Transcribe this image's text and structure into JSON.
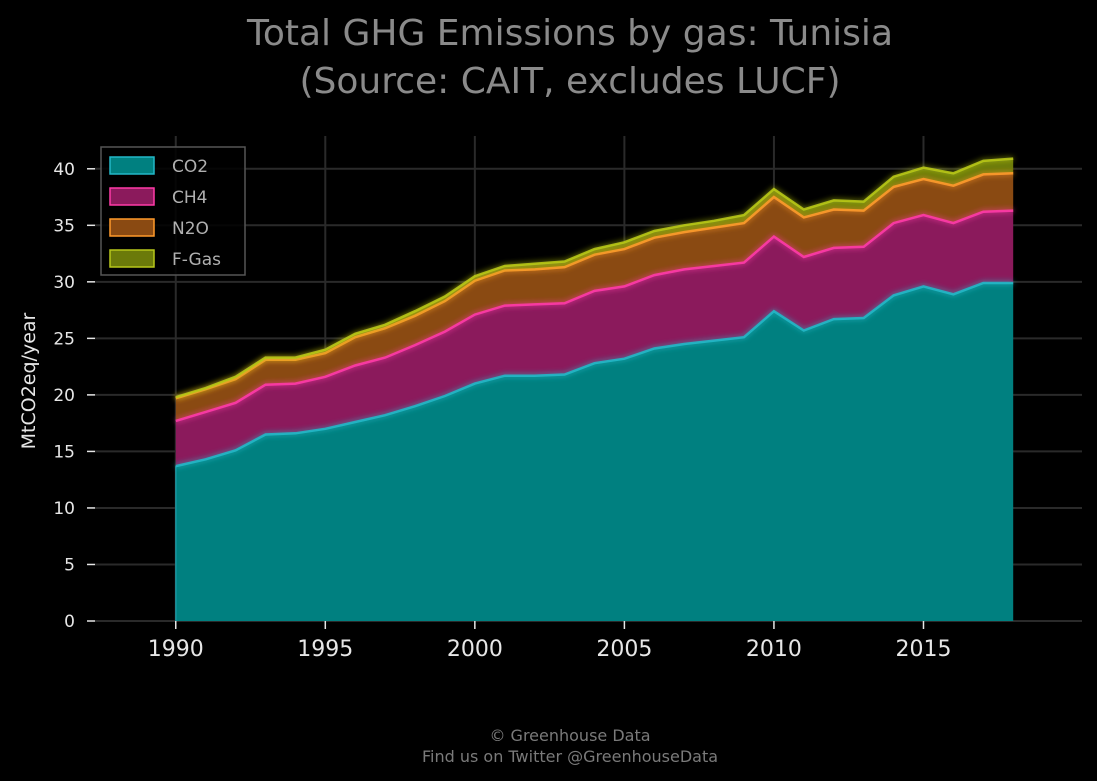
{
  "title_line1": "Total GHG Emissions by gas: Tunisia",
  "title_line2": "(Source: CAIT, excludes LUCF)",
  "footer_line1": "© Greenhouse Data",
  "footer_line2": "Find us on Twitter @GreenhouseData",
  "chart_data": {
    "type": "area",
    "stacked": true,
    "ylabel": "MtCO2eq/year",
    "xlabel": "",
    "xlim": [
      1987.3,
      2020.3
    ],
    "ylim": [
      0,
      42.9
    ],
    "grid": true,
    "legend_position": "top-left",
    "x_ticks": [
      1990,
      1995,
      2000,
      2005,
      2010,
      2015
    ],
    "y_ticks": [
      0,
      5,
      10,
      15,
      20,
      25,
      30,
      35,
      40
    ],
    "x": [
      1990,
      1991,
      1992,
      1993,
      1994,
      1995,
      1996,
      1997,
      1998,
      1999,
      2000,
      2001,
      2002,
      2003,
      2004,
      2005,
      2006,
      2007,
      2008,
      2009,
      2010,
      2011,
      2012,
      2013,
      2014,
      2015,
      2016,
      2017,
      2018
    ],
    "series": [
      {
        "name": "CO2",
        "color": "#008080",
        "values": [
          13.7,
          14.3,
          15.1,
          16.5,
          16.6,
          17.0,
          17.6,
          18.2,
          19.0,
          19.9,
          21.0,
          21.7,
          21.7,
          21.8,
          22.8,
          23.2,
          24.1,
          24.5,
          24.8,
          25.1,
          27.4,
          25.7,
          26.7,
          26.8,
          28.8,
          29.6,
          28.9,
          29.9,
          29.9
        ]
      },
      {
        "name": "CH4",
        "color": "#8b1a5c",
        "values": [
          4.0,
          4.2,
          4.2,
          4.4,
          4.4,
          4.6,
          5.0,
          5.1,
          5.4,
          5.7,
          6.1,
          6.2,
          6.3,
          6.3,
          6.4,
          6.4,
          6.5,
          6.6,
          6.6,
          6.6,
          6.6,
          6.5,
          6.3,
          6.3,
          6.4,
          6.3,
          6.3,
          6.3,
          6.4
        ]
      },
      {
        "name": "N2O",
        "color": "#8a4a12",
        "values": [
          2.0,
          2.0,
          2.1,
          2.2,
          2.1,
          2.1,
          2.5,
          2.6,
          2.6,
          2.7,
          3.0,
          3.1,
          3.1,
          3.2,
          3.2,
          3.3,
          3.3,
          3.3,
          3.4,
          3.5,
          3.5,
          3.5,
          3.4,
          3.2,
          3.2,
          3.2,
          3.3,
          3.3,
          3.3
        ]
      },
      {
        "name": "F-Gas",
        "color": "#6b7a0a",
        "values": [
          0.1,
          0.1,
          0.2,
          0.2,
          0.2,
          0.3,
          0.3,
          0.3,
          0.4,
          0.4,
          0.4,
          0.4,
          0.5,
          0.5,
          0.5,
          0.6,
          0.6,
          0.6,
          0.6,
          0.7,
          0.7,
          0.7,
          0.8,
          0.8,
          0.9,
          1.0,
          1.1,
          1.2,
          1.3
        ]
      }
    ],
    "line_colors": {
      "CO2": "#22b8c8",
      "CH4": "#ff3aa8",
      "N2O": "#ff9a2a",
      "F-Gas": "#b8c81a"
    },
    "background": "#000000",
    "grid_color": "#2a2a2a"
  }
}
